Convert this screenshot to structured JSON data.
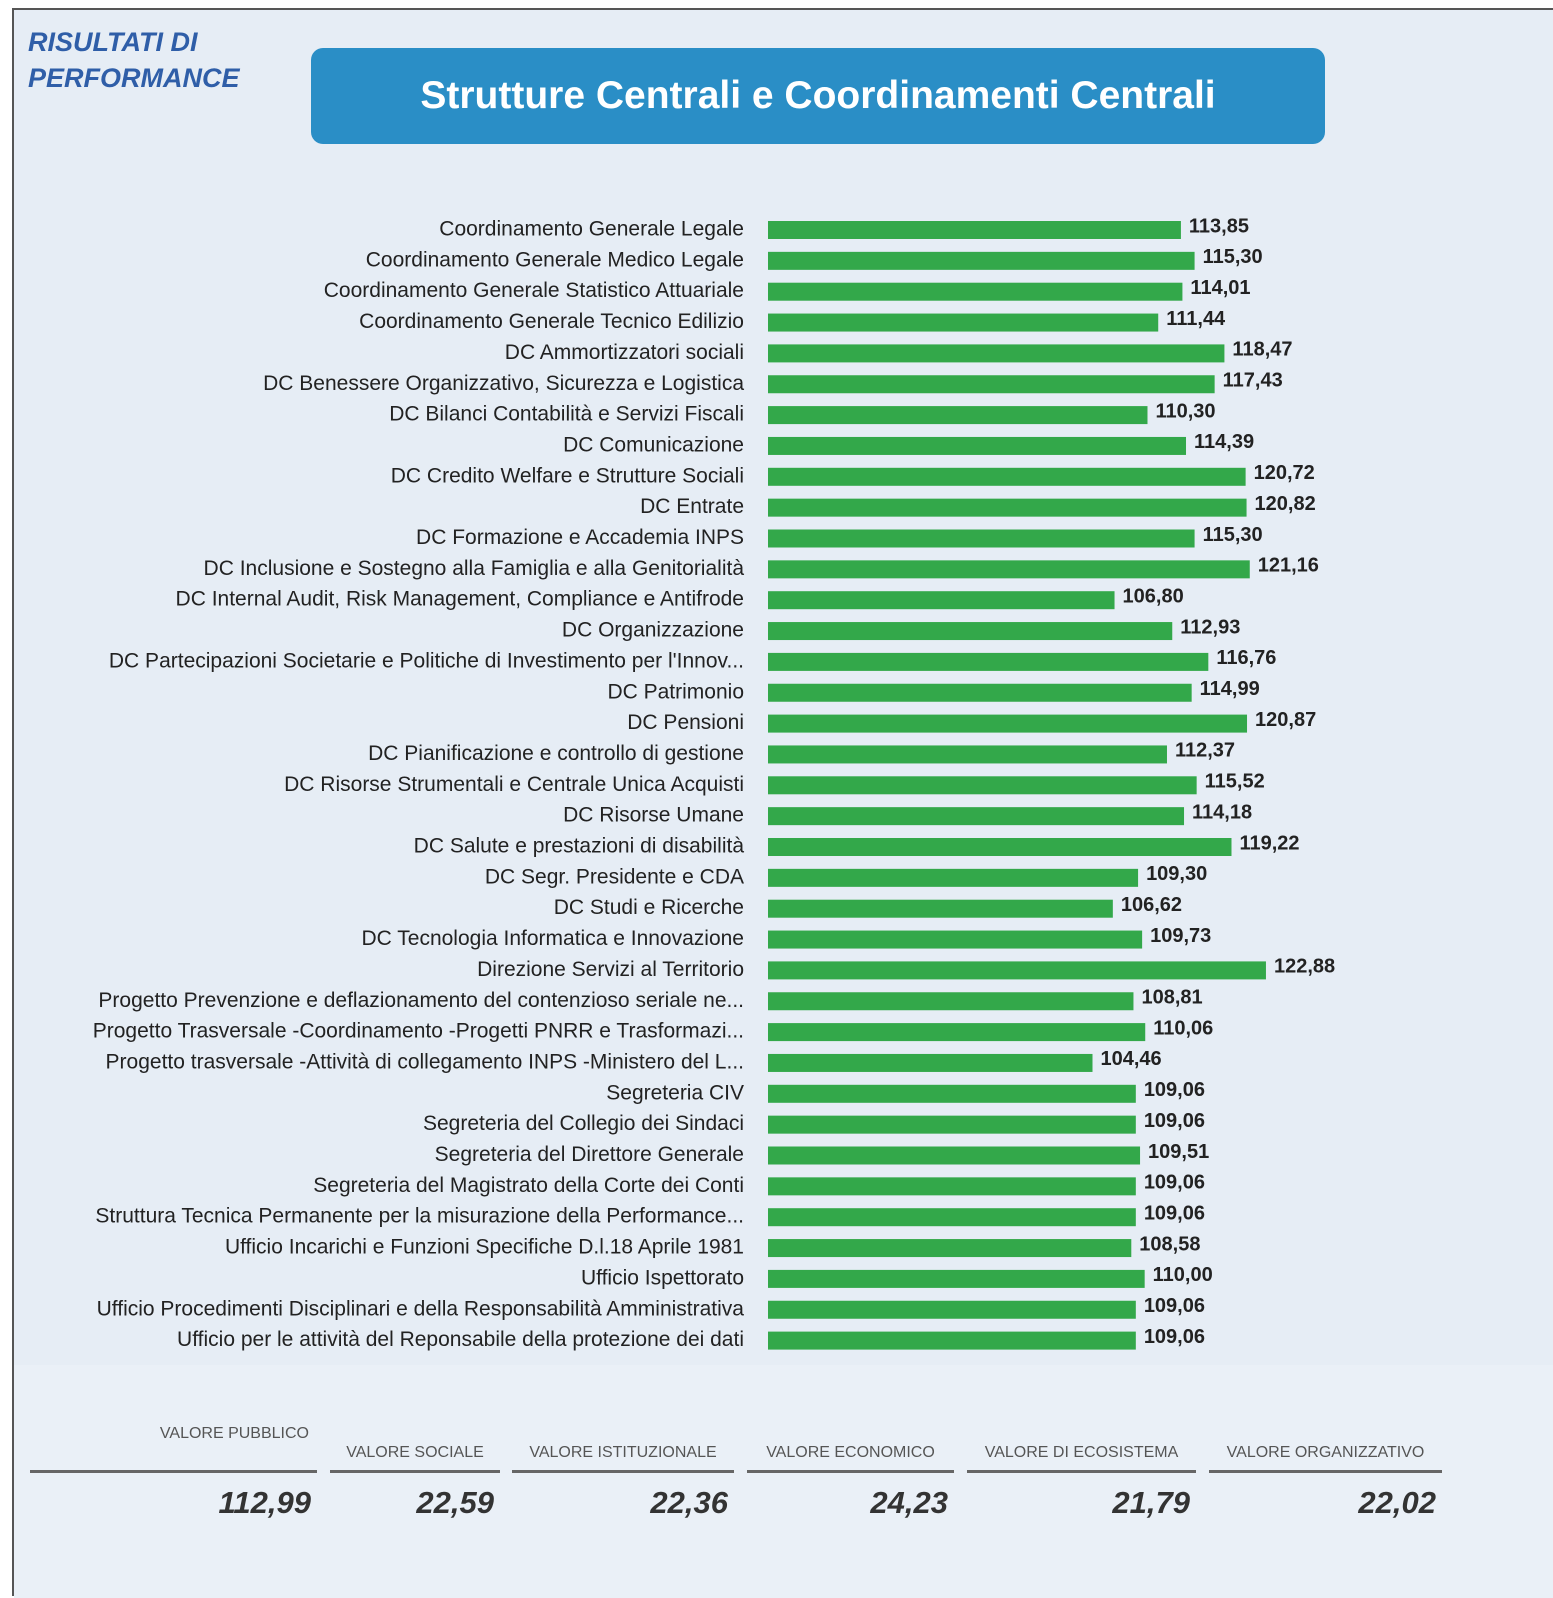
{
  "header": {
    "kicker": "RISULTATI DI PERFORMANCE",
    "title": "Strutture Centrali e Coordinamenti Centrali"
  },
  "chart_data": {
    "type": "bar",
    "orientation": "horizontal",
    "color": "#33a84a",
    "categories": [
      "Coordinamento Generale Legale",
      "Coordinamento Generale Medico Legale",
      "Coordinamento Generale Statistico Attuariale",
      "Coordinamento Generale Tecnico Edilizio",
      "DC Ammortizzatori sociali",
      "DC Benessere Organizzativo, Sicurezza e Logistica",
      "DC Bilanci Contabilità e Servizi Fiscali",
      "DC Comunicazione",
      "DC Credito Welfare e Strutture Sociali",
      "DC Entrate",
      "DC Formazione e Accademia INPS",
      "DC Inclusione e Sostegno alla Famiglia e alla Genitorialità",
      "DC Internal Audit, Risk Management, Compliance e Antifrode",
      "DC Organizzazione",
      "DC Partecipazioni Societarie e Politiche di Investimento per l'Innov...",
      "DC Patrimonio",
      "DC Pensioni",
      "DC Pianificazione e controllo di gestione",
      "DC Risorse Strumentali e Centrale Unica Acquisti",
      "DC Risorse Umane",
      "DC Salute e prestazioni di disabilità",
      "DC Segr. Presidente e CDA",
      "DC Studi e Ricerche",
      "DC Tecnologia Informatica e Innovazione",
      "Direzione Servizi al Territorio",
      "Progetto Prevenzione e deflazionamento del contenzioso seriale ne...",
      "Progetto Trasversale -Coordinamento -Progetti PNRR e Trasformazi...",
      "Progetto trasversale -Attività di collegamento INPS -Ministero del L...",
      "Segreteria CIV",
      "Segreteria del Collegio dei Sindaci",
      "Segreteria del Direttore Generale",
      "Segreteria del Magistrato della Corte dei Conti",
      "Struttura Tecnica Permanente per la misurazione della Performance...",
      "Ufficio Incarichi e Funzioni Specifiche D.l.18 Aprile 1981",
      "Ufficio Ispettorato",
      "Ufficio Procedimenti Disciplinari e della Responsabilità Amministrativa",
      "Ufficio per le attività del Reponsabile della protezione dei dati"
    ],
    "values": [
      113.85,
      115.3,
      114.01,
      111.44,
      118.47,
      117.43,
      110.3,
      114.39,
      120.72,
      120.82,
      115.3,
      121.16,
      106.8,
      112.93,
      116.76,
      114.99,
      120.87,
      112.37,
      115.52,
      114.18,
      119.22,
      109.3,
      106.62,
      109.73,
      122.88,
      108.81,
      110.06,
      104.46,
      109.06,
      109.06,
      109.51,
      109.06,
      109.06,
      108.58,
      110.0,
      109.06,
      109.06
    ],
    "value_labels": [
      "113,85",
      "115,30",
      "114,01",
      "111,44",
      "118,47",
      "117,43",
      "110,30",
      "114,39",
      "120,72",
      "120,82",
      "115,30",
      "121,16",
      "106,80",
      "112,93",
      "116,76",
      "114,99",
      "120,87",
      "112,37",
      "115,52",
      "114,18",
      "119,22",
      "109,30",
      "106,62",
      "109,73",
      "122,88",
      "108,81",
      "110,06",
      "104,46",
      "109,06",
      "109,06",
      "109,51",
      "109,06",
      "109,06",
      "108,58",
      "110,00",
      "109,06",
      "109,06"
    ],
    "xlim": [
      70,
      130
    ]
  },
  "kpis": [
    {
      "label": "VALORE PUBBLICO",
      "value": "112,99"
    },
    {
      "label": "VALORE SOCIALE",
      "value": "22,59"
    },
    {
      "label": "VALORE ISTITUZIONALE",
      "value": "22,36"
    },
    {
      "label": "VALORE ECONOMICO",
      "value": "24,23"
    },
    {
      "label": "VALORE DI ECOSISTEMA",
      "value": "21,79"
    },
    {
      "label": "VALORE ORGANIZZATIVO",
      "value": "22,02"
    }
  ]
}
